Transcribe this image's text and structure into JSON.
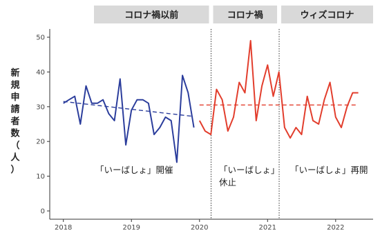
{
  "chart_data": {
    "type": "line",
    "ylabel_chars": [
      "新",
      "規",
      "申",
      "請",
      "者",
      "数",
      "（",
      "人",
      "）"
    ],
    "ylim": [
      0,
      50
    ],
    "y_ticks": [
      0,
      10,
      20,
      30,
      40,
      50
    ],
    "x_ticks": [
      "2018",
      "2019",
      "2020",
      "2021",
      "2022"
    ],
    "x_tick_values": [
      2018,
      2019,
      2020,
      2021,
      2022
    ],
    "xlim": [
      2017.8,
      2022.55
    ],
    "period_labels": [
      "コロナ禍以前",
      "コロナ禍",
      "ウィズコロナ"
    ],
    "period_boundaries": [
      2020.17,
      2021.17
    ],
    "annotations": [
      {
        "lines": [
          "「いーばしょ」開催"
        ]
      },
      {
        "lines": [
          "「いーばしょ」",
          "休止"
        ]
      },
      {
        "lines": [
          "「いーばしょ」再開"
        ]
      }
    ],
    "grid": false,
    "series": [
      {
        "color": "#2b3d9c",
        "x": [
          2018.0,
          2018.083,
          2018.167,
          2018.25,
          2018.333,
          2018.417,
          2018.5,
          2018.583,
          2018.667,
          2018.75,
          2018.833,
          2018.917,
          2019.0,
          2019.083,
          2019.167,
          2019.25,
          2019.333,
          2019.417,
          2019.5,
          2019.583,
          2019.667,
          2019.75,
          2019.833,
          2019.917
        ],
        "values": [
          31,
          32,
          33,
          25,
          36,
          31,
          31,
          32,
          28,
          26,
          38,
          19,
          29,
          32,
          32,
          31,
          22,
          24,
          27,
          26,
          14,
          39,
          34,
          24
        ],
        "trend": [
          [
            2018.0,
            31.5
          ],
          [
            2019.917,
            27.2
          ]
        ]
      },
      {
        "color": "#e23d2c",
        "x": [
          2020.0,
          2020.083,
          2020.167,
          2020.25,
          2020.333,
          2020.417,
          2020.5,
          2020.583,
          2020.667,
          2020.75,
          2020.833,
          2020.917,
          2021.0,
          2021.083,
          2021.167,
          2021.25,
          2021.333,
          2021.417,
          2021.5,
          2021.583,
          2021.667,
          2021.75,
          2021.833,
          2021.917,
          2022.0,
          2022.083,
          2022.167,
          2022.25,
          2022.333
        ],
        "values": [
          26,
          23,
          22,
          35,
          32,
          23,
          27,
          37,
          34,
          49,
          26,
          36,
          42,
          33,
          40,
          24,
          21,
          24,
          22,
          33,
          26,
          25,
          32,
          37,
          27,
          24,
          30,
          34,
          34
        ],
        "trend": [
          [
            2020.0,
            30.5
          ],
          [
            2022.333,
            30.5
          ]
        ]
      }
    ]
  }
}
